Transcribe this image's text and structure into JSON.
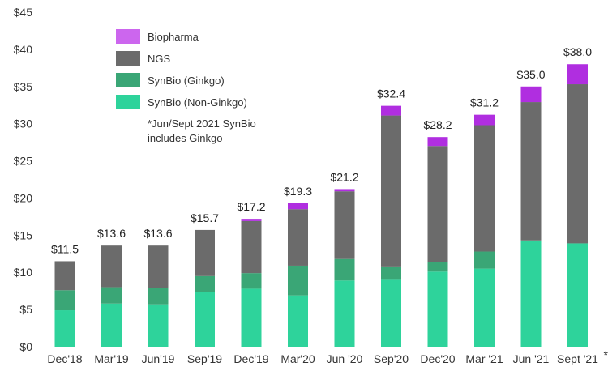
{
  "chart_data": {
    "type": "stacked_bar",
    "categories": [
      "Dec'18",
      "Mar'19",
      "Jun'19",
      "Sep'19",
      "Dec'19",
      "Mar'20",
      "Jun '20",
      "Sep'20",
      "Dec'20",
      "Mar '21",
      "Jun '21",
      "Sept '21"
    ],
    "category_marker": "*",
    "series": [
      {
        "name": "SynBio (Non-Ginkgo)",
        "color": "#2ed39b",
        "values": [
          4.9,
          5.8,
          5.7,
          7.4,
          7.8,
          6.9,
          8.9,
          9.0,
          10.1,
          10.5,
          14.3,
          13.9
        ]
      },
      {
        "name": "SynBio (Ginkgo)",
        "color": "#3aa676",
        "values": [
          2.7,
          2.2,
          2.2,
          2.1,
          2.1,
          4.0,
          2.9,
          1.8,
          1.3,
          2.3,
          0.0,
          0.0
        ]
      },
      {
        "name": "NGS",
        "color": "#6b6b6b",
        "values": [
          3.9,
          5.6,
          5.7,
          6.2,
          7.0,
          7.6,
          9.1,
          20.3,
          15.6,
          17.0,
          18.6,
          21.4
        ]
      },
      {
        "name": "Biopharma",
        "color": "#b02ee0",
        "values": [
          0.0,
          0.0,
          0.0,
          0.0,
          0.3,
          0.8,
          0.3,
          1.3,
          1.2,
          1.4,
          2.1,
          2.7
        ]
      }
    ],
    "totals": [
      "$11.5",
      "$13.6",
      "$13.6",
      "$15.7",
      "$17.2",
      "$19.3",
      "$21.2",
      "$32.4",
      "$28.2",
      "$31.2",
      "$35.0",
      "$38.0"
    ],
    "y_ticks": [
      "$0",
      "$5",
      "$10",
      "$15",
      "$20",
      "$25",
      "$30",
      "$35",
      "$40",
      "$45"
    ],
    "ylim": [
      0,
      45
    ],
    "legend": [
      {
        "name": "Biopharma",
        "color": "#cc66ee"
      },
      {
        "name": "NGS",
        "color": "#6b6b6b"
      },
      {
        "name": "SynBio (Ginkgo)",
        "color": "#3aa676"
      },
      {
        "name": "SynBio (Non-Ginkgo)",
        "color": "#2ed39b"
      }
    ],
    "legend_position": "top-left",
    "footnote": [
      "*Jun/Sept 2021 SynBio",
      "includes Ginkgo"
    ],
    "grid": false
  }
}
